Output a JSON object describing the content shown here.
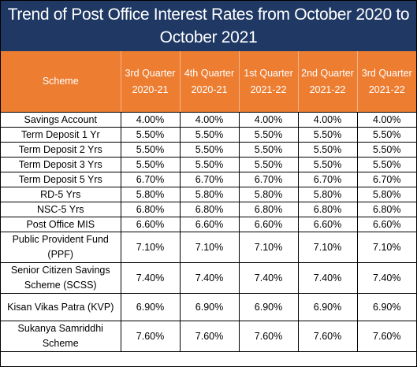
{
  "title": "Trend of Post Office Interest Rates from October 2020 to October 2021",
  "colors": {
    "title_bg": "#1f3864",
    "header_bg": "#ed7d31",
    "header_text": "#ffffff"
  },
  "columns": [
    "Scheme",
    "3rd Quarter 2020-21",
    "4th Quarter 2020-21",
    "1st Quarter 2021-22",
    "2nd Quarter 2021-22",
    "3rd Quarter 2021-22"
  ],
  "rows": [
    {
      "scheme": "Savings Account",
      "rates": [
        "4.00%",
        "4.00%",
        "4.00%",
        "4.00%",
        "4.00%"
      ]
    },
    {
      "scheme": "Term Deposit 1 Yr",
      "rates": [
        "5.50%",
        "5.50%",
        "5.50%",
        "5.50%",
        "5.50%"
      ]
    },
    {
      "scheme": "Term Deposit 2 Yrs",
      "rates": [
        "5.50%",
        "5.50%",
        "5.50%",
        "5.50%",
        "5.50%"
      ]
    },
    {
      "scheme": "Term Deposit 3 Yrs",
      "rates": [
        "5.50%",
        "5.50%",
        "5.50%",
        "5.50%",
        "5.50%"
      ]
    },
    {
      "scheme": "Term Deposit 5 Yrs",
      "rates": [
        "6.70%",
        "6.70%",
        "6.70%",
        "6.70%",
        "6.70%"
      ]
    },
    {
      "scheme": "RD-5 Yrs",
      "rates": [
        "5.80%",
        "5.80%",
        "5.80%",
        "5.80%",
        "5.80%"
      ]
    },
    {
      "scheme": "NSC-5 Yrs",
      "rates": [
        "6.80%",
        "6.80%",
        "6.80%",
        "6.80%",
        "6.80%"
      ]
    },
    {
      "scheme": "Post Office MIS",
      "rates": [
        "6.60%",
        "6.60%",
        "6.60%",
        "6.60%",
        "6.60%"
      ]
    },
    {
      "scheme": "Public Provident Fund (PPF)",
      "rates": [
        "7.10%",
        "7.10%",
        "7.10%",
        "7.10%",
        "7.10%"
      ]
    },
    {
      "scheme": "Senior Citizen Savings Scheme (SCSS)",
      "rates": [
        "7.40%",
        "7.40%",
        "7.40%",
        "7.40%",
        "7.40%"
      ]
    },
    {
      "scheme": "Kisan Vikas Patra (KVP)",
      "rates": [
        "6.90%",
        "6.90%",
        "6.90%",
        "6.90%",
        "6.90%"
      ]
    },
    {
      "scheme": "Sukanya Samriddhi Scheme",
      "rates": [
        "7.60%",
        "7.60%",
        "7.60%",
        "7.60%",
        "7.60%"
      ]
    }
  ]
}
